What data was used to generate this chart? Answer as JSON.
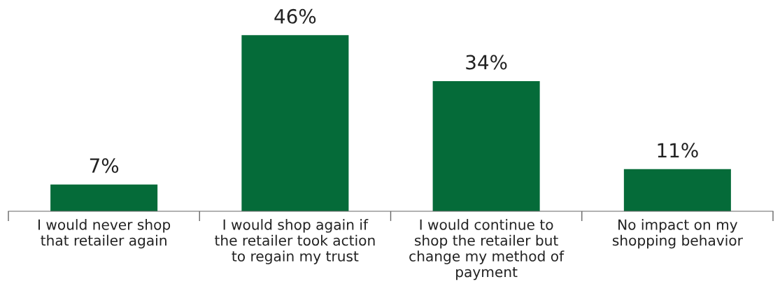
{
  "chart_data": {
    "type": "bar",
    "categories": [
      "I would never shop\nthat retailer again",
      "I would shop again if\nthe retailer took action\nto regain my trust",
      "I would continue to\nshop the retailer but\nchange my method of\npayment",
      "No impact on my\nshopping behavior"
    ],
    "values": [
      7,
      46,
      34,
      11
    ],
    "color": "#056b39",
    "data_labels": false,
    "value_labels": [
      "7%",
      "46%",
      "34%",
      "11%"
    ],
    "grid": false,
    "legend": false
  }
}
